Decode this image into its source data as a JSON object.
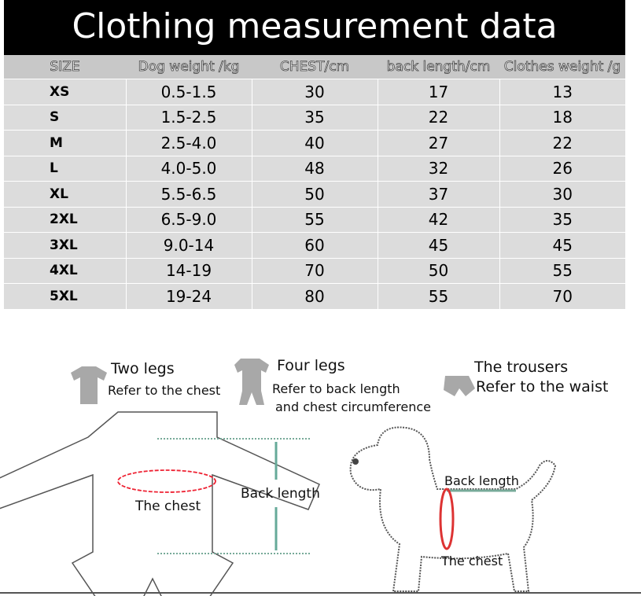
{
  "header": {
    "title": "Clothing measurement data"
  },
  "table": {
    "columns": [
      "SIZE",
      "Dog weight /kg",
      "CHEST/cm",
      "back length/cm",
      "Clothes weight /g"
    ],
    "rows": [
      [
        "XS",
        "0.5-1.5",
        "30",
        "17",
        "13"
      ],
      [
        "S",
        "1.5-2.5",
        "35",
        "22",
        "18"
      ],
      [
        "M",
        "2.5-4.0",
        "40",
        "27",
        "22"
      ],
      [
        "L",
        "4.0-5.0",
        "48",
        "32",
        "26"
      ],
      [
        "XL",
        "5.5-6.5",
        "50",
        "37",
        "30"
      ],
      [
        "2XL",
        "6.5-9.0",
        "55",
        "42",
        "35"
      ],
      [
        "3XL",
        "9.0-14",
        "60",
        "45",
        "45"
      ],
      [
        "4XL",
        "14-19",
        "70",
        "50",
        "55"
      ],
      [
        "5XL",
        "19-24",
        "80",
        "55",
        "70"
      ]
    ]
  },
  "guide": {
    "two_legs": {
      "title": "Two legs",
      "note": "Refer to the chest"
    },
    "four_legs": {
      "title": "Four legs",
      "note": [
        "Refer to back length",
        "and chest circumference"
      ]
    },
    "trousers": {
      "title": "The trousers",
      "note": "Refer to the waist"
    }
  },
  "garment_diagram": {
    "chest": "The chest",
    "back_length": "Back length"
  },
  "dog_diagram": {
    "back_length": "Back length",
    "chest": "The chest"
  }
}
